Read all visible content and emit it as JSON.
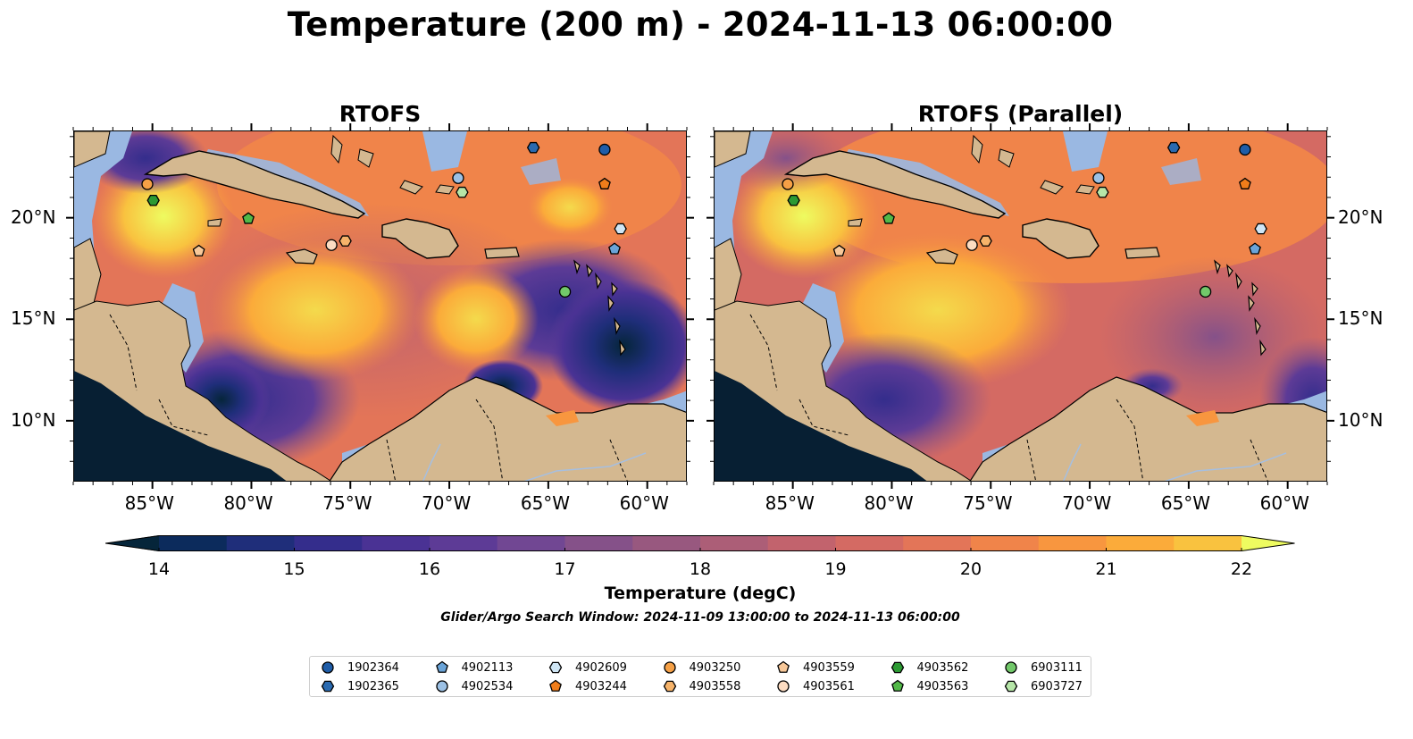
{
  "figure": {
    "title": "Temperature (200 m) - 2024-11-13 06:00:00",
    "subtitle": "Glider/Argo Search Window: 2024-11-09 13:00:00 to 2024-11-13 06:00:00"
  },
  "panels": [
    {
      "title": "RTOFS"
    },
    {
      "title": "RTOFS (Parallel)"
    }
  ],
  "axes": {
    "lon_labels": [
      "85°W",
      "80°W",
      "75°W",
      "70°W",
      "65°W",
      "60°W"
    ],
    "lat_labels": [
      "20°N",
      "15°N",
      "10°N"
    ]
  },
  "colorbar": {
    "label": "Temperature (degC)",
    "ticks": [
      "14",
      "15",
      "16",
      "17",
      "18",
      "19",
      "20",
      "21",
      "22"
    ],
    "min": 14,
    "max": 22,
    "extend": "both",
    "colors": [
      "#05253a",
      "#0c2b5c",
      "#1f2e7a",
      "#342d8c",
      "#4a3294",
      "#5d3b96",
      "#714793",
      "#855189",
      "#98587f",
      "#ac5e77",
      "#c2636d",
      "#d46a63",
      "#e37558",
      "#f0844a",
      "#f8963f",
      "#fbab3a",
      "#f9c23f",
      "#f4da4c",
      "#eefb60"
    ]
  },
  "map_colors": {
    "land": "#d4b890",
    "shelf": "#9ab8e2",
    "ocean_deep": "#071f33"
  },
  "legend": [
    {
      "id": "1902364",
      "marker": "circle",
      "color": "#1f5da8"
    },
    {
      "id": "1902365",
      "marker": "hexagon",
      "color": "#2a6ab0"
    },
    {
      "id": "4902113",
      "marker": "pentagon",
      "color": "#6aa4d8"
    },
    {
      "id": "4902534",
      "marker": "circle",
      "color": "#9cc1e5"
    },
    {
      "id": "4902609",
      "marker": "hexagon",
      "color": "#cfe6f5"
    },
    {
      "id": "4903244",
      "marker": "pentagon",
      "color": "#f07d1a"
    },
    {
      "id": "4903250",
      "marker": "circle",
      "color": "#f5a046"
    },
    {
      "id": "4903558",
      "marker": "hexagon",
      "color": "#f6b36a"
    },
    {
      "id": "4903559",
      "marker": "pentagon",
      "color": "#f8c899"
    },
    {
      "id": "4903561",
      "marker": "circle",
      "color": "#fcdcc2"
    },
    {
      "id": "4903562",
      "marker": "hexagon",
      "color": "#2c9a33"
    },
    {
      "id": "4903563",
      "marker": "pentagon",
      "color": "#52b848"
    },
    {
      "id": "6903111",
      "marker": "circle",
      "color": "#72c86a"
    },
    {
      "id": "6903727",
      "marker": "hexagon",
      "color": "#b6e6a8"
    }
  ],
  "map_extent": {
    "lon": [
      -89,
      -58
    ],
    "lat": [
      7,
      24.3
    ]
  },
  "stations": [
    {
      "id": "1902364",
      "lon": -62.2,
      "lat": 23.4
    },
    {
      "id": "1902365",
      "lon": -65.8,
      "lat": 23.5
    },
    {
      "id": "4902113",
      "lon": -61.7,
      "lat": 18.5
    },
    {
      "id": "4902534",
      "lon": -69.6,
      "lat": 22.0
    },
    {
      "id": "4902609",
      "lon": -61.4,
      "lat": 19.5
    },
    {
      "id": "4903244",
      "lon": -62.2,
      "lat": 21.7
    },
    {
      "id": "4903250",
      "lon": -85.3,
      "lat": 21.7
    },
    {
      "id": "4903558",
      "lon": -75.3,
      "lat": 18.9
    },
    {
      "id": "4903559",
      "lon": -82.7,
      "lat": 18.4
    },
    {
      "id": "4903561",
      "lon": -76.0,
      "lat": 18.7
    },
    {
      "id": "4903562",
      "lon": -85.0,
      "lat": 20.9
    },
    {
      "id": "4903563",
      "lon": -80.2,
      "lat": 20.0
    },
    {
      "id": "6903111",
      "lon": -64.2,
      "lat": 16.4
    },
    {
      "id": "6903727",
      "lon": -69.4,
      "lat": 21.3
    }
  ]
}
